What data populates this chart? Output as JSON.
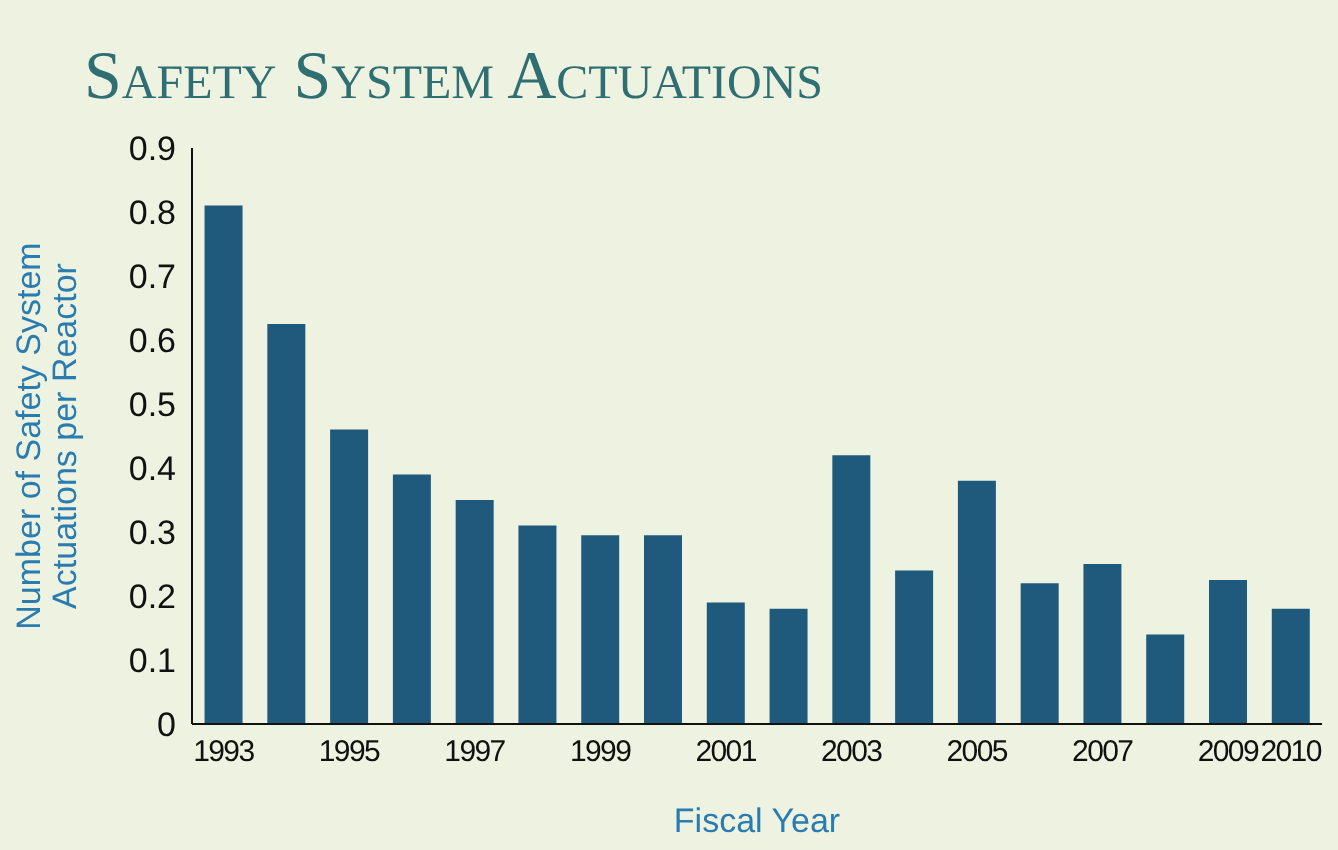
{
  "chart_data": {
    "type": "bar",
    "title": "Safety System Actuations",
    "xlabel": "Fiscal Year",
    "ylabel": "Number of Safety System Actuations per Reactor",
    "categories": [
      "1993",
      null,
      "1995",
      null,
      "1997",
      null,
      "1999",
      null,
      "2001",
      null,
      "2003",
      null,
      "2005",
      null,
      "2007",
      null,
      "2009",
      "2010"
    ],
    "values": [
      0.81,
      0.625,
      0.46,
      0.39,
      0.35,
      0.31,
      0.295,
      0.295,
      0.19,
      0.18,
      0.42,
      0.24,
      0.38,
      0.22,
      0.25,
      0.14,
      0.225,
      0.18
    ],
    "color": "#1f5a7c",
    "ylim": [
      0,
      0.9
    ],
    "yticks": [
      0,
      0.1,
      0.2,
      0.3,
      0.4,
      0.5,
      0.6,
      0.7,
      0.8,
      0.9
    ],
    "grid": false,
    "legend": false
  }
}
